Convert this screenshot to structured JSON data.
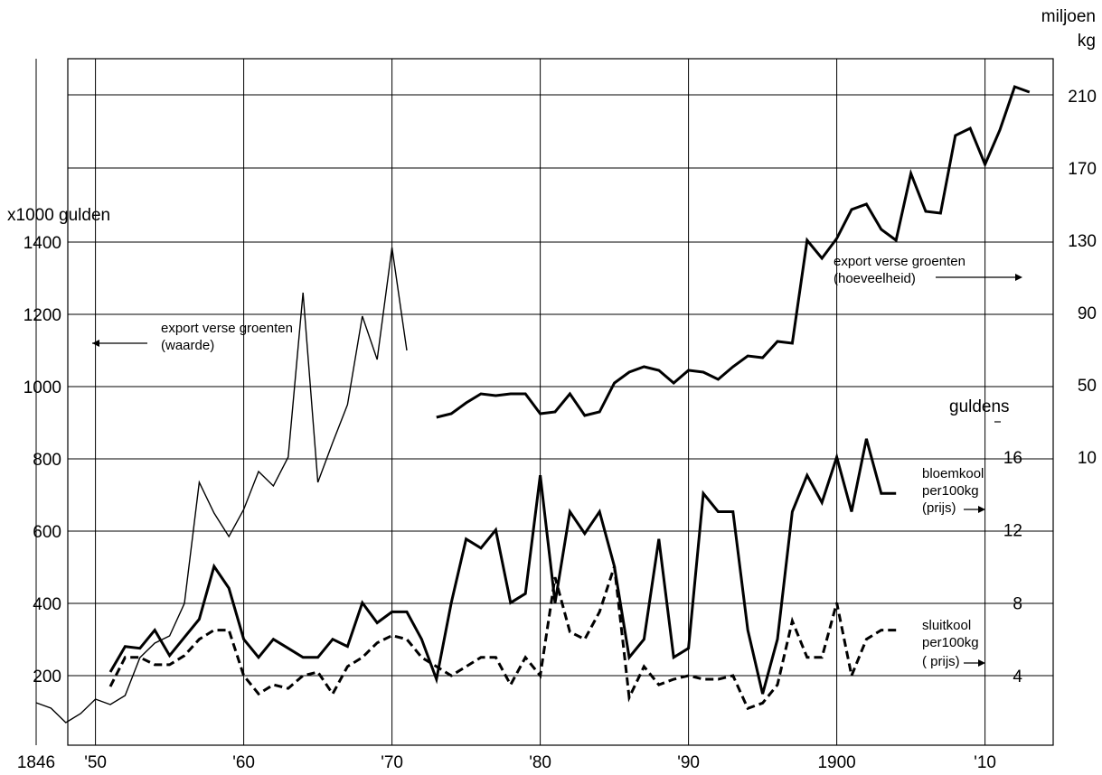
{
  "chart_data": {
    "type": "line",
    "x_ticks": [
      {
        "x": 1846,
        "label": "1846"
      },
      {
        "x": 1850,
        "label": "'50"
      },
      {
        "x": 1860,
        "label": "'60"
      },
      {
        "x": 1870,
        "label": "'70"
      },
      {
        "x": 1880,
        "label": "'80"
      },
      {
        "x": 1890,
        "label": "'90"
      },
      {
        "x": 1900,
        "label": "1900"
      },
      {
        "x": 1910,
        "label": "'10"
      }
    ],
    "axes": {
      "left": {
        "label": "x1000 gulden",
        "ticks": [
          200,
          400,
          600,
          800,
          1000,
          1200,
          1400
        ]
      },
      "right_outer": {
        "label_line1": "miljoen",
        "label_line2": "kg",
        "ticks": [
          10,
          50,
          90,
          130,
          170,
          210
        ]
      },
      "right_inner": {
        "label": "guldens",
        "ticks": [
          4,
          8,
          12,
          16
        ]
      }
    },
    "series": [
      {
        "name": "export verse groenten (waarde)",
        "axis": "left",
        "style": "thin",
        "x": [
          1846,
          1847,
          1848,
          1849,
          1850,
          1851,
          1852,
          1853,
          1854,
          1855,
          1856,
          1857,
          1858,
          1859,
          1860,
          1861,
          1862,
          1863,
          1864,
          1865,
          1866,
          1867,
          1868,
          1869,
          1870,
          1871
        ],
        "y": [
          125,
          110,
          70,
          95,
          135,
          120,
          145,
          250,
          290,
          310,
          400,
          735,
          650,
          585,
          660,
          765,
          725,
          805,
          1260,
          735,
          845,
          950,
          1195,
          1075,
          1385,
          1100
        ]
      },
      {
        "name": "export verse groenten (hoeveelheid)",
        "axis": "right_outer",
        "style": "thick",
        "x": [
          1873,
          1874,
          1875,
          1876,
          1877,
          1878,
          1879,
          1880,
          1881,
          1882,
          1883,
          1884,
          1885,
          1886,
          1887,
          1888,
          1889,
          1890,
          1891,
          1892,
          1893,
          1894,
          1895,
          1896,
          1897,
          1898,
          1899,
          1900,
          1901,
          1902,
          1903,
          1904,
          1905,
          1906,
          1907,
          1908,
          1909,
          1910,
          1911,
          1912,
          1913
        ],
        "y": [
          32,
          34,
          40,
          45,
          44,
          45,
          45,
          34,
          35,
          45,
          33,
          35,
          51,
          57,
          60,
          58,
          51,
          58,
          57,
          53,
          60,
          66,
          65,
          74,
          73,
          130,
          120,
          131,
          147,
          150,
          136,
          130,
          167,
          146,
          145,
          188,
          192,
          172,
          191,
          215,
          212
        ]
      },
      {
        "name": "bloemkool per100kg (prijs)",
        "axis": "right_inner",
        "style": "thick",
        "x": [
          1851,
          1852,
          1853,
          1854,
          1855,
          1856,
          1857,
          1858,
          1859,
          1860,
          1861,
          1862,
          1863,
          1864,
          1865,
          1866,
          1867,
          1868,
          1869,
          1870,
          1871,
          1872,
          1873,
          1874,
          1875,
          1876,
          1877,
          1878,
          1879,
          1880,
          1881,
          1882,
          1883,
          1884,
          1885,
          1886,
          1887,
          1888,
          1889,
          1890,
          1891,
          1892,
          1893,
          1894,
          1895,
          1896,
          1897,
          1898,
          1899,
          1900,
          1901,
          1902,
          1903,
          1904
        ],
        "y": [
          4.2,
          5.6,
          5.5,
          6.5,
          5.1,
          6.1,
          7.1,
          10.0,
          8.8,
          6.0,
          5.0,
          6.0,
          5.5,
          5.0,
          5.0,
          6.0,
          5.6,
          8.0,
          6.9,
          7.5,
          7.5,
          6.0,
          3.8,
          8.0,
          11.5,
          11.0,
          12.0,
          8.0,
          8.5,
          15.0,
          8.0,
          13.0,
          11.8,
          13.0,
          10.0,
          5.0,
          6.0,
          11.5,
          5.0,
          5.5,
          14.0,
          13.0,
          13.0,
          6.5,
          3.0,
          6.0,
          13.0,
          15.0,
          13.5,
          16.0,
          13.0,
          17.0,
          14.0,
          14.0
        ]
      },
      {
        "name": "sluitkool per100kg (prijs)",
        "axis": "right_inner",
        "style": "dashed",
        "x": [
          1851,
          1852,
          1853,
          1854,
          1855,
          1856,
          1857,
          1858,
          1859,
          1860,
          1861,
          1862,
          1863,
          1864,
          1865,
          1866,
          1867,
          1868,
          1869,
          1870,
          1871,
          1872,
          1873,
          1874,
          1875,
          1876,
          1877,
          1878,
          1879,
          1880,
          1881,
          1882,
          1883,
          1884,
          1885,
          1886,
          1887,
          1888,
          1889,
          1890,
          1891,
          1892,
          1893,
          1894,
          1895,
          1896,
          1897,
          1898,
          1899,
          1900,
          1901,
          1902,
          1903,
          1904
        ],
        "y": [
          3.4,
          5.0,
          5.0,
          4.6,
          4.6,
          5.1,
          6.0,
          6.5,
          6.5,
          4.0,
          3.0,
          3.5,
          3.3,
          4.0,
          4.2,
          3.0,
          4.5,
          5.0,
          5.8,
          6.2,
          6.0,
          5.0,
          4.5,
          4.0,
          4.5,
          5.0,
          5.0,
          3.5,
          5.0,
          4.0,
          9.4,
          6.4,
          6.0,
          7.5,
          10.0,
          2.8,
          4.5,
          3.5,
          3.8,
          4.0,
          3.8,
          3.8,
          4.0,
          2.2,
          2.5,
          3.5,
          7.0,
          5.0,
          5.0,
          8.0,
          4.0,
          6.0,
          6.5,
          6.5
        ]
      }
    ],
    "annotations": {
      "waarde_line1": "export verse groenten",
      "waarde_line2": "(waarde)",
      "hoeveelheid_line1": "export verse groenten",
      "hoeveelheid_line2": "(hoeveelheid)",
      "bloemkool_line1": "bloemkool",
      "bloemkool_line2": "per100kg",
      "bloemkool_line3": "(prijs)",
      "sluitkool_line1": "sluitkool",
      "sluitkool_line2": "per100kg",
      "sluitkool_line3": "( prijs)"
    }
  }
}
